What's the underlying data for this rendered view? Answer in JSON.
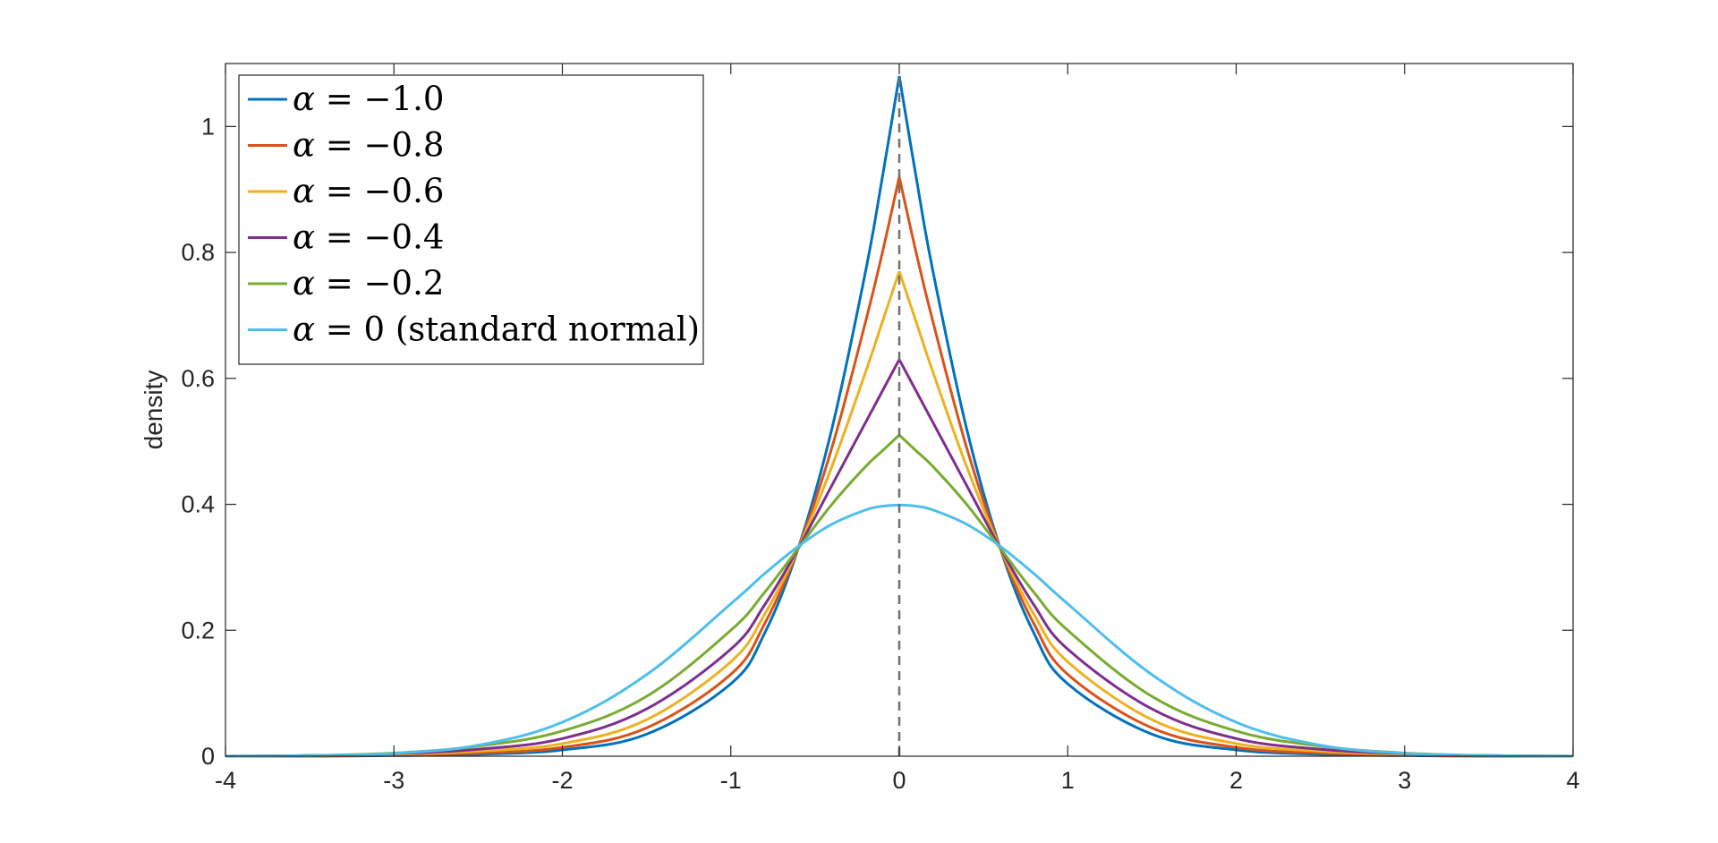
{
  "chart_data": {
    "type": "line",
    "title": "",
    "xlabel": "",
    "ylabel": "density",
    "xlim": [
      -4,
      4
    ],
    "ylim": [
      0,
      1.1
    ],
    "x_ticks": [
      -4,
      -3,
      -2,
      -1,
      0,
      1,
      2,
      3,
      4
    ],
    "x_tick_labels": [
      "-4",
      "-3",
      "-2",
      "-1",
      "0",
      "1",
      "2",
      "3",
      "4"
    ],
    "y_ticks": [
      0,
      0.2,
      0.4,
      0.6,
      0.8,
      1
    ],
    "y_tick_labels": [
      "0",
      "0.2",
      "0.4",
      "0.6",
      "0.8",
      "1"
    ],
    "grid": false,
    "legend_position": "top-left",
    "x": [
      -4.0,
      -3.5,
      -3.0,
      -2.5,
      -2.0,
      -1.5,
      -1.0,
      -0.8,
      -0.6,
      -0.4,
      -0.2,
      -0.1,
      0.0,
      0.1,
      0.2,
      0.4,
      0.6,
      0.8,
      1.0,
      1.5,
      2.0,
      2.5,
      3.0,
      3.5,
      4.0
    ],
    "series": [
      {
        "name": "α = −1.0",
        "alpha": "−1.0",
        "color": "#0072BD",
        "values": [
          0.0,
          0.0,
          0.001,
          0.003,
          0.01,
          0.035,
          0.115,
          0.195,
          0.33,
          0.52,
          0.77,
          0.92,
          1.08,
          0.92,
          0.77,
          0.52,
          0.33,
          0.195,
          0.115,
          0.035,
          0.01,
          0.003,
          0.001,
          0.0,
          0.0
        ]
      },
      {
        "name": "α = −0.8",
        "alpha": "−0.8",
        "color": "#D95319",
        "values": [
          0.0,
          0.0,
          0.002,
          0.005,
          0.014,
          0.045,
          0.13,
          0.21,
          0.33,
          0.49,
          0.69,
          0.8,
          0.92,
          0.8,
          0.69,
          0.49,
          0.33,
          0.21,
          0.13,
          0.045,
          0.014,
          0.005,
          0.002,
          0.0,
          0.0
        ]
      },
      {
        "name": "α = −0.6",
        "alpha": "−0.6",
        "color": "#EDB120",
        "values": [
          0.0,
          0.001,
          0.003,
          0.008,
          0.02,
          0.058,
          0.15,
          0.225,
          0.33,
          0.46,
          0.61,
          0.69,
          0.77,
          0.69,
          0.61,
          0.46,
          0.33,
          0.225,
          0.15,
          0.058,
          0.02,
          0.008,
          0.003,
          0.001,
          0.0
        ]
      },
      {
        "name": "α = −0.4",
        "alpha": "−0.4",
        "color": "#7E2F8E",
        "values": [
          0.0,
          0.001,
          0.004,
          0.011,
          0.028,
          0.075,
          0.17,
          0.24,
          0.33,
          0.43,
          0.53,
          0.58,
          0.63,
          0.58,
          0.53,
          0.43,
          0.33,
          0.24,
          0.17,
          0.075,
          0.028,
          0.011,
          0.004,
          0.001,
          0.0
        ]
      },
      {
        "name": "α = −0.2",
        "alpha": "−0.2",
        "color": "#77AC30",
        "values": [
          0.0,
          0.001,
          0.005,
          0.016,
          0.04,
          0.095,
          0.2,
          0.26,
          0.33,
          0.4,
          0.46,
          0.485,
          0.51,
          0.485,
          0.46,
          0.4,
          0.33,
          0.26,
          0.2,
          0.095,
          0.04,
          0.016,
          0.005,
          0.001,
          0.0
        ]
      },
      {
        "name": "α = 0 (standard normal)",
        "alpha": "0",
        "note": "(standard normal)",
        "color": "#4DBEEE",
        "values": [
          0.0001,
          0.0009,
          0.0044,
          0.0175,
          0.054,
          0.1295,
          0.242,
          0.2897,
          0.3332,
          0.3683,
          0.391,
          0.397,
          0.3989,
          0.397,
          0.391,
          0.3683,
          0.3332,
          0.2897,
          0.242,
          0.1295,
          0.054,
          0.0175,
          0.0044,
          0.0009,
          0.0001
        ]
      }
    ],
    "reference_line": {
      "x": 0,
      "style": "dashed",
      "color": "#707070"
    }
  }
}
